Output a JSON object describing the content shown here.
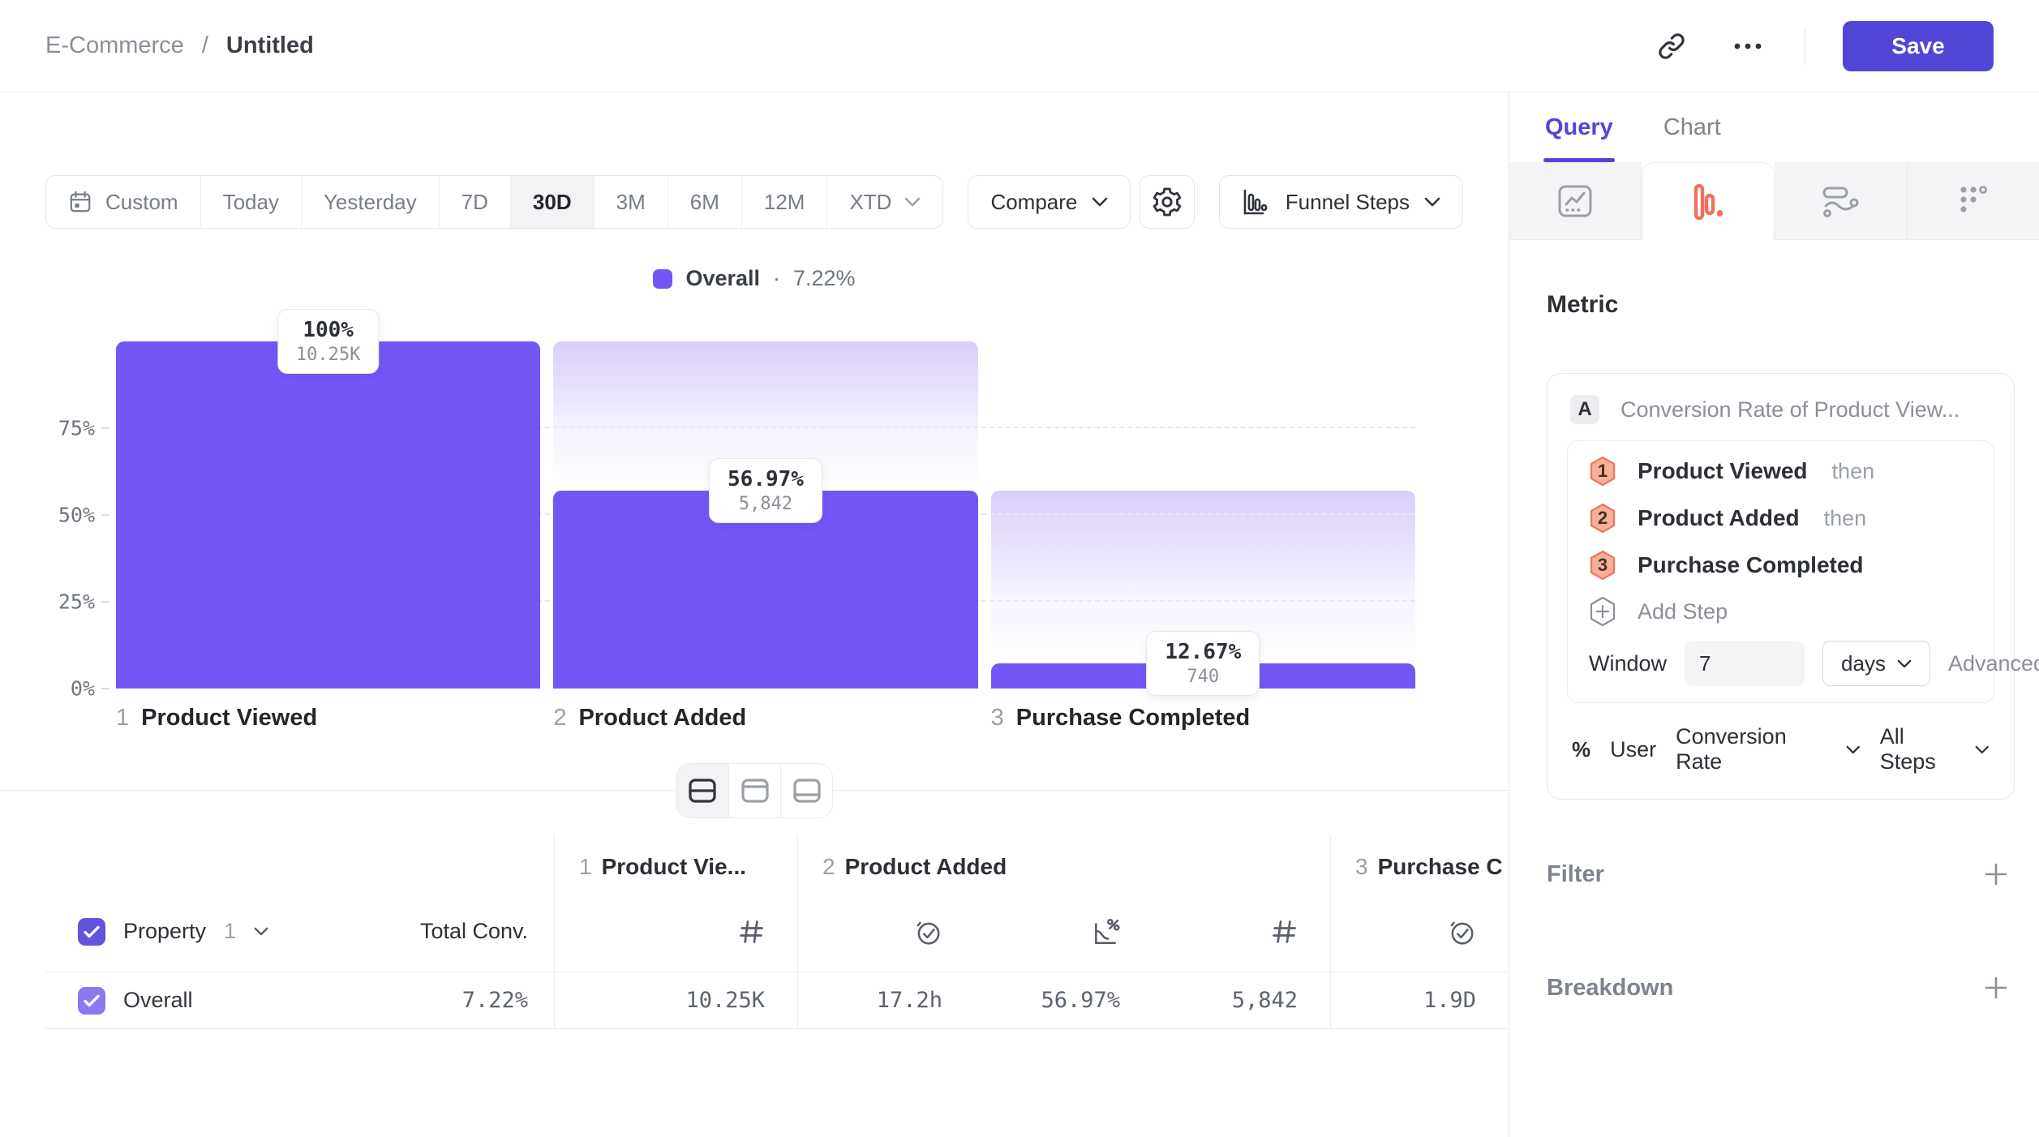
{
  "header": {
    "breadcrumb": {
      "parent": "E-Commerce",
      "separator": "/",
      "current": "Untitled"
    },
    "save_label": "Save"
  },
  "toolbar": {
    "date_ranges": [
      "Custom",
      "Today",
      "Yesterday",
      "7D",
      "30D",
      "3M",
      "6M",
      "12M",
      "XTD"
    ],
    "selected_range": "30D",
    "compare_label": "Compare",
    "chart_type_label": "Funnel Steps"
  },
  "legend": {
    "series": "Overall",
    "separator": "·",
    "value": "7.22%"
  },
  "chart_data": {
    "type": "bar",
    "subtype": "funnel-steps",
    "title": "Overall · 7.22%",
    "bar_color": "#7456f6",
    "overall_conversion_pct": 7.22,
    "y_axis": {
      "unit": "%",
      "range": [
        0,
        100
      ],
      "ticks": [
        {
          "label": "75%",
          "value": 75
        },
        {
          "label": "50%",
          "value": 50
        },
        {
          "label": "25%",
          "value": 25
        },
        {
          "label": "0%",
          "value": 0
        }
      ],
      "gridlines": "dashed"
    },
    "steps": [
      {
        "index": "1",
        "label": "Product Viewed",
        "pct_label": "100%",
        "count_label": "10.25K",
        "count": 10250,
        "height_pct": 100
      },
      {
        "index": "2",
        "label": "Product Added",
        "pct_label": "56.97%",
        "count_label": "5,842",
        "count": 5842,
        "height_pct": 56.97
      },
      {
        "index": "3",
        "label": "Purchase Completed",
        "pct_label": "12.67%",
        "count_label": "740",
        "count": 740,
        "height_pct": 7.22
      }
    ]
  },
  "view_switcher": {
    "modes": [
      "split-view",
      "chart-view",
      "table-view"
    ],
    "selected": "split-view"
  },
  "table": {
    "property_label": "Property",
    "property_num": "1",
    "total_conv_label": "Total Conv.",
    "groups": [
      {
        "num": "1",
        "label": "Product Vie..."
      },
      {
        "num": "2",
        "label": "Product Added"
      },
      {
        "num": "3",
        "label": "Purchase C"
      }
    ],
    "row": {
      "name": "Overall",
      "checked": true,
      "total": "7.22%",
      "values": [
        "10.25K",
        "17.2h",
        "56.97%",
        "5,842",
        "1.9D"
      ]
    }
  },
  "sidebar": {
    "tabs": [
      {
        "label": "Query",
        "active": true
      },
      {
        "label": "Chart",
        "active": false
      }
    ],
    "chart_type_tabs": [
      "line-chart",
      "funnel-bars",
      "flow",
      "scatter-dots"
    ],
    "active_chart_type": "funnel-bars",
    "accent_active_tab": "#f2705a",
    "metric": {
      "section_title": "Metric",
      "badge": "A",
      "name": "Conversion Rate of Product View...",
      "steps": [
        {
          "num": "1",
          "label": "Product Viewed",
          "suffix": "then"
        },
        {
          "num": "2",
          "label": "Product Added",
          "suffix": "then"
        },
        {
          "num": "3",
          "label": "Purchase Completed",
          "suffix": ""
        }
      ],
      "add_step_label": "Add Step",
      "window": {
        "label": "Window",
        "value": "7",
        "unit": "days",
        "advanced_label": "Advanced"
      },
      "measured_as": {
        "prefix": "%",
        "entity": "User",
        "measure": "Conversion Rate",
        "scope": "All Steps"
      }
    },
    "filter_label": "Filter",
    "breakdown_label": "Breakdown"
  },
  "colors": {
    "bar_purple": "#7456f6",
    "accent_indigo": "#5246d6",
    "funnel_tab_orange": "#f2705a",
    "step_hexagon_fill": "#f9b09a",
    "step_hexagon_stroke": "#e97a5c"
  },
  "icons": {
    "topbar": [
      "link-icon",
      "more-icon"
    ],
    "toolbar": [
      "calendar-icon",
      "chevron-down-icon",
      "gear-icon",
      "funnel-bars-icon"
    ],
    "table_header": [
      "hash-icon",
      "clock-check-icon",
      "chart-percent-icon"
    ],
    "sidebar": [
      "line-chart-icon",
      "funnel-bars-icon",
      "flow-icon",
      "scatter-dots-icon",
      "hexagon-plus-icon",
      "plus-icon"
    ]
  }
}
